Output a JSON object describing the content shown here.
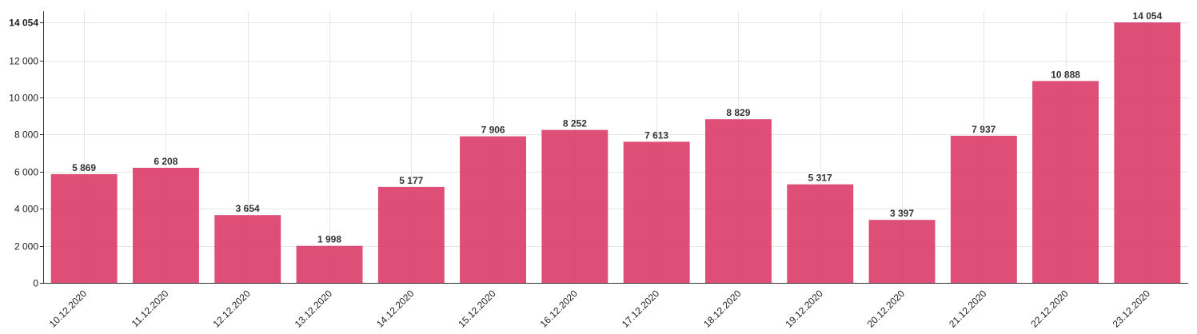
{
  "chart_data": {
    "type": "bar",
    "categories": [
      "10.12.2020",
      "11.12.2020",
      "12.12.2020",
      "13.12.2020",
      "14.12.2020",
      "15.12.2020",
      "16.12.2020",
      "17.12.2020",
      "18.12.2020",
      "19.12.2020",
      "20.12.2020",
      "21.12.2020",
      "22.12.2020",
      "23.12.2020"
    ],
    "values": [
      5869,
      6208,
      3654,
      1998,
      5177,
      7906,
      8252,
      7613,
      8829,
      5317,
      3397,
      7937,
      10888,
      14054
    ],
    "value_labels": [
      "5 869",
      "6 208",
      "3 654",
      "1 998",
      "5 177",
      "7 906",
      "8 252",
      "7 613",
      "8 829",
      "5 317",
      "3 397",
      "7 937",
      "10 888",
      "14 054"
    ],
    "y_ticks": [
      0,
      2000,
      4000,
      6000,
      8000,
      10000,
      12000,
      14054
    ],
    "y_tick_labels": [
      "0",
      "2 000",
      "4 000",
      "6 000",
      "8 000",
      "10 000",
      "12 000",
      "14 054"
    ],
    "ylim": [
      0,
      14054
    ],
    "bar_color": "#dc3f6a",
    "grid": true,
    "title": "",
    "xlabel": "",
    "ylabel": ""
  }
}
